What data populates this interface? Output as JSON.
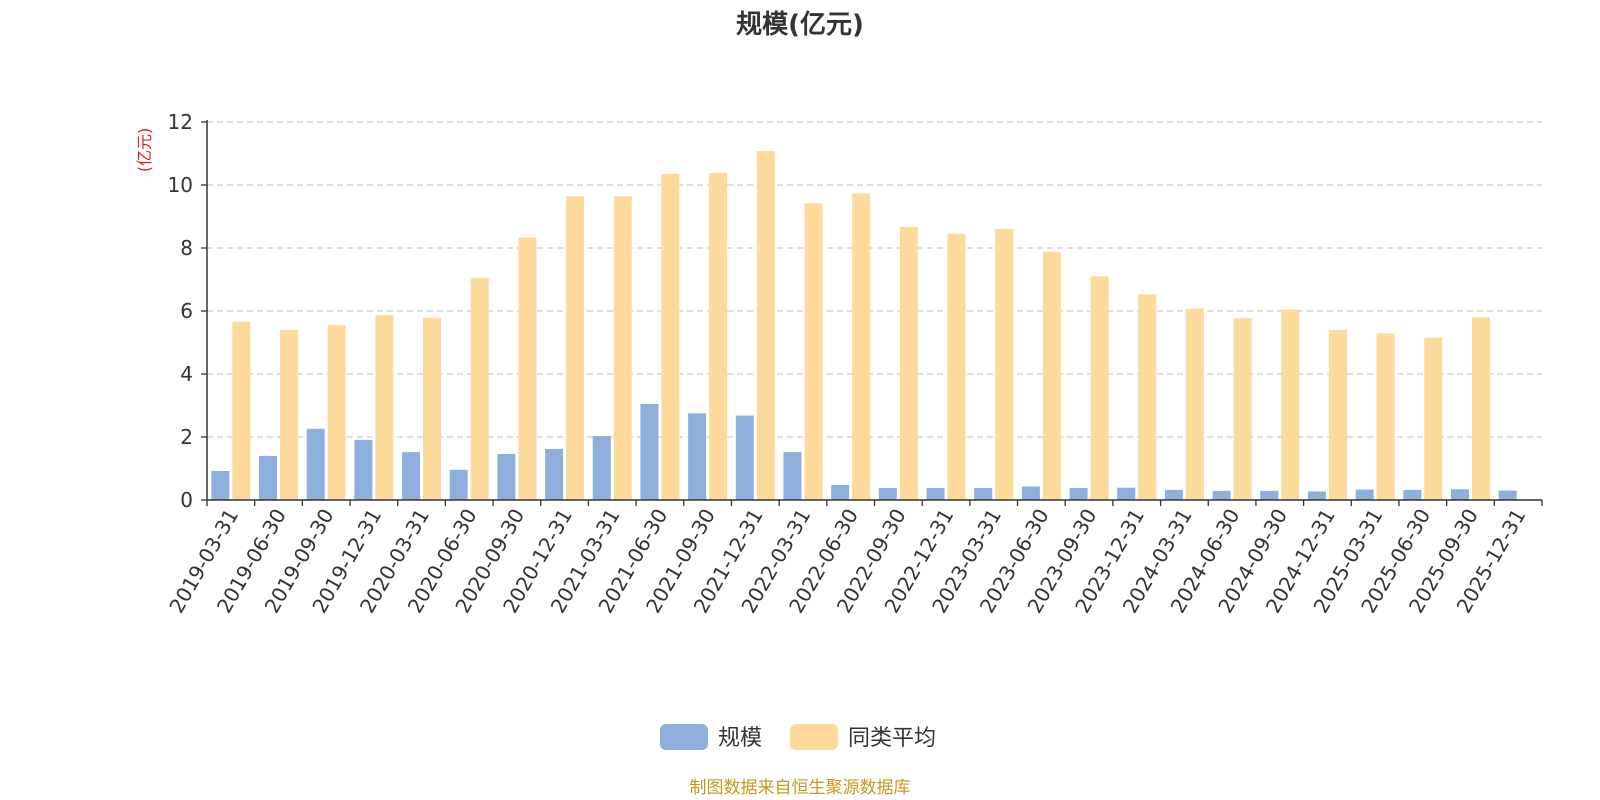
{
  "chart_data": {
    "type": "bar",
    "title": "规模(亿元)",
    "ylabel": "(亿元)",
    "ylim": [
      0,
      12
    ],
    "yticks": [
      0,
      2,
      4,
      6,
      8,
      10,
      12
    ],
    "grid": "horizontal dashed",
    "legend_position": "bottom-center",
    "categories": [
      "2019-03-31",
      "2019-06-30",
      "2019-09-30",
      "2019-12-31",
      "2020-03-31",
      "2020-06-30",
      "2020-09-30",
      "2020-12-31",
      "2021-03-31",
      "2021-06-30",
      "2021-09-30",
      "2021-12-31",
      "2022-03-31",
      "2022-06-30",
      "2022-09-30",
      "2022-12-31",
      "2023-03-31",
      "2023-06-30",
      "2023-09-30",
      "2023-12-31",
      "2024-03-31",
      "2024-06-30",
      "2024-09-30",
      "2024-12-31",
      "2025-03-31",
      "2025-06-30",
      "2025-09-30",
      "2025-12-31"
    ],
    "series": [
      {
        "name": "规模",
        "color": "#8eafdc",
        "values": [
          0.92,
          1.4,
          2.26,
          1.91,
          1.52,
          0.96,
          1.46,
          1.62,
          2.03,
          3.05,
          2.75,
          2.68,
          1.52,
          0.48,
          0.38,
          0.38,
          0.38,
          0.43,
          0.38,
          0.39,
          0.32,
          0.29,
          0.29,
          0.27,
          0.33,
          0.32,
          0.34,
          0.3
        ]
      },
      {
        "name": "同类平均",
        "color": "#fdd99b",
        "values": [
          5.66,
          5.4,
          5.55,
          5.87,
          5.78,
          7.04,
          8.33,
          9.64,
          9.64,
          10.35,
          10.38,
          11.08,
          9.42,
          9.73,
          8.67,
          8.45,
          8.6,
          7.87,
          7.1,
          6.53,
          6.08,
          5.77,
          6.05,
          5.4,
          5.29,
          5.15,
          5.8,
          null
        ]
      }
    ]
  },
  "source": {
    "text": "制图数据来自恒生聚源数据库",
    "color": "#c8961e"
  },
  "axis_label_color": "#e01a1a"
}
